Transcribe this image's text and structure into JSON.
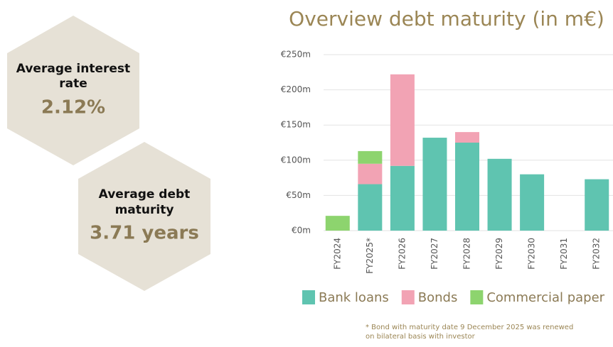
{
  "kpis": [
    {
      "label": [
        "Average interest",
        "rate"
      ],
      "value": "2.12%"
    },
    {
      "label": [
        "Average debt",
        "maturity"
      ],
      "value": "3.71 years"
    }
  ],
  "chart_data": {
    "type": "stacked-bar",
    "title": "Overview debt maturity (in m€)",
    "categories": [
      "FY2024",
      "FY2025*",
      "FY2026",
      "FY2027",
      "FY2028",
      "FY2029",
      "FY2030",
      "FY2031",
      "FY2032"
    ],
    "series": [
      {
        "name": "Bank loans",
        "color": "#5fc4b0",
        "values": [
          0,
          66,
          92,
          132,
          125,
          102,
          80,
          0,
          73
        ]
      },
      {
        "name": "Bonds",
        "color": "#f2a3b4",
        "values": [
          0,
          29,
          130,
          0,
          15,
          0,
          0,
          0,
          0
        ]
      },
      {
        "name": "Commercial paper",
        "color": "#8dd46e",
        "values": [
          21,
          18,
          0,
          0,
          0,
          0,
          0,
          0,
          0
        ]
      }
    ],
    "ylim": [
      0,
      250
    ],
    "yticks": [
      {
        "value": 0,
        "label": "€0m"
      },
      {
        "value": 50,
        "label": "€50m"
      },
      {
        "value": 100,
        "label": "€100m"
      },
      {
        "value": 150,
        "label": "€150m"
      },
      {
        "value": 200,
        "label": "€200m"
      },
      {
        "value": 250,
        "label": "€250m"
      }
    ],
    "grid": true,
    "annotations": [
      "* Bond with maturity date 9 December 2025 was renewed",
      "on bilateral basis with investor"
    ]
  }
}
